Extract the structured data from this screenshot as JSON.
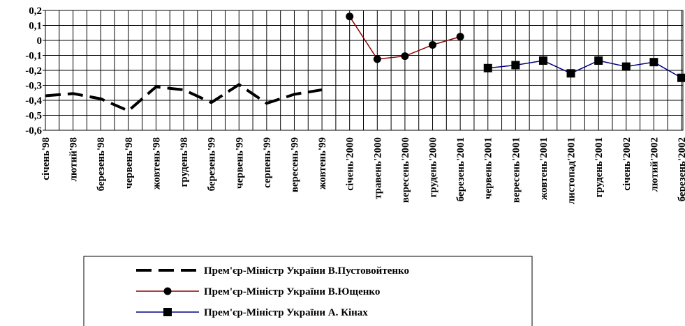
{
  "chart_data": {
    "type": "line",
    "categories": [
      "січень'98",
      "лютий'98",
      "березень'98",
      "червень'98",
      "жовтень'98",
      "грудень'98",
      "березень'99",
      "червень'99",
      "серпень'99",
      "вересень'99",
      "жовтень'99",
      "січень'2000",
      "травень'2000",
      "вересень'2000",
      "грудень'2000",
      "березень'2001",
      "червень'2001",
      "вересень'2001",
      "жовтень'2001",
      "листопад'2001",
      "грудень'2001",
      "січень'2002",
      "лютий'2002",
      "березень'2002"
    ],
    "series": [
      {
        "name": "Прем'єр-Міністр України В.Пустовойтенко",
        "color": "#000000",
        "dash": true,
        "marker": null,
        "values": [
          -0.37,
          -0.355,
          -0.39,
          -0.47,
          -0.31,
          -0.33,
          -0.415,
          -0.295,
          -0.42,
          -0.36,
          -0.33,
          null,
          null,
          null,
          null,
          null,
          null,
          null,
          null,
          null,
          null,
          null,
          null,
          null
        ]
      },
      {
        "name": "Прем'єр-Міністр України В.Ющенко",
        "color": "#8b0000",
        "dash": false,
        "marker": "circle",
        "values": [
          null,
          null,
          null,
          null,
          null,
          null,
          null,
          null,
          null,
          null,
          null,
          0.16,
          -0.125,
          -0.105,
          -0.03,
          0.025,
          null,
          null,
          null,
          null,
          null,
          null,
          null,
          null
        ]
      },
      {
        "name": "Прем'єр-Міністр України А. Кінах",
        "color": "#000080",
        "dash": false,
        "marker": "square",
        "values": [
          null,
          null,
          null,
          null,
          null,
          null,
          null,
          null,
          null,
          null,
          null,
          null,
          null,
          null,
          null,
          null,
          -0.185,
          -0.165,
          -0.135,
          -0.22,
          -0.135,
          -0.175,
          -0.145,
          -0.25
        ]
      }
    ],
    "ylim": [
      -0.6,
      0.2
    ],
    "yticks": [
      {
        "value": 0.2,
        "label": "0,2"
      },
      {
        "value": 0.1,
        "label": "0,1"
      },
      0,
      {
        "value": -0.1,
        "label": "-0,1"
      },
      {
        "value": -0.2,
        "label": "-0,2"
      },
      {
        "value": -0.3,
        "label": "-0,3"
      },
      {
        "value": -0.4,
        "label": "-0,4"
      },
      {
        "value": -0.5,
        "label": "-0,5"
      },
      {
        "value": -0.6,
        "label": "-0,6"
      }
    ],
    "grid": true
  }
}
